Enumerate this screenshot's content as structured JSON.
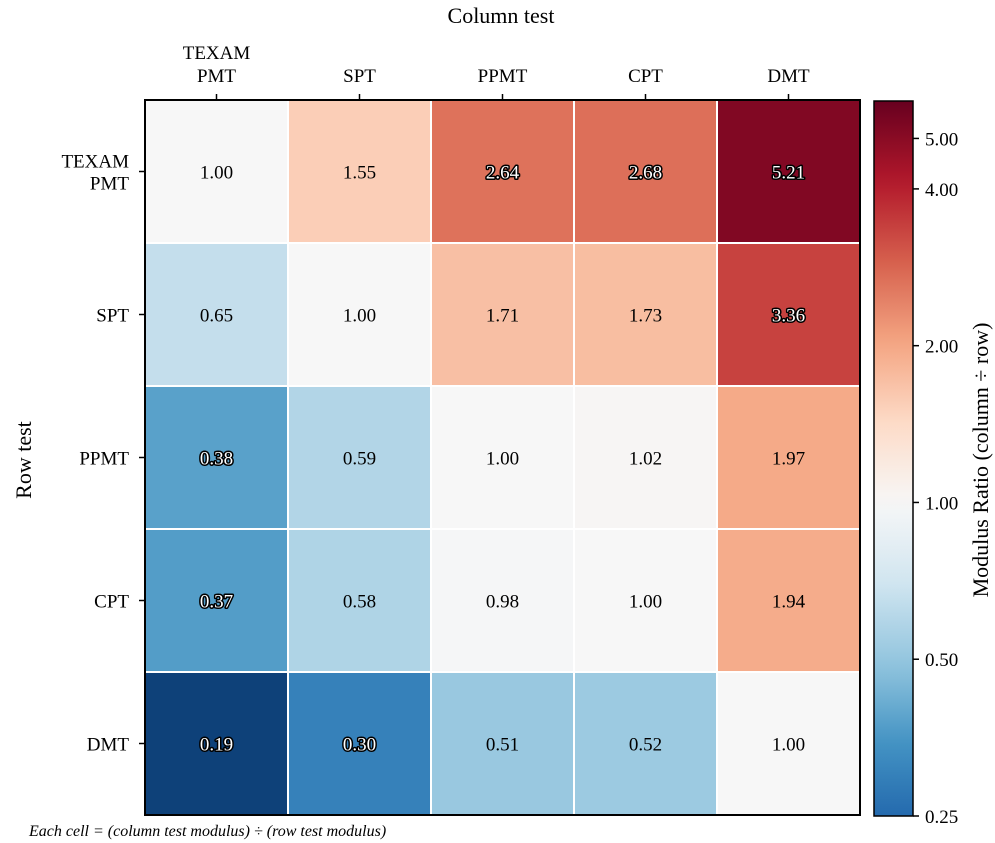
{
  "chart_data": {
    "type": "heatmap",
    "title": "",
    "xlabel": "Column test",
    "ylabel": "Row test",
    "columns": [
      "TEXAM PMT",
      "SPT",
      "PPMT",
      "CPT",
      "DMT"
    ],
    "rows": [
      "TEXAM PMT",
      "SPT",
      "PPMT",
      "CPT",
      "DMT"
    ],
    "values": [
      [
        1.0,
        1.55,
        2.64,
        2.68,
        5.21
      ],
      [
        0.65,
        1.0,
        1.71,
        1.73,
        3.36
      ],
      [
        0.38,
        0.59,
        1.0,
        1.02,
        1.97
      ],
      [
        0.37,
        0.58,
        0.98,
        1.0,
        1.94
      ],
      [
        0.19,
        0.3,
        0.51,
        0.52,
        1.0
      ]
    ],
    "value_labels": [
      [
        "1.00",
        "1.55",
        "2.64",
        "2.68",
        "5.21"
      ],
      [
        "0.65",
        "1.00",
        "1.71",
        "1.73",
        "3.36"
      ],
      [
        "0.38",
        "0.59",
        "1.00",
        "1.02",
        "1.97"
      ],
      [
        "0.37",
        "0.58",
        "0.98",
        "1.00",
        "1.94"
      ],
      [
        "0.19",
        "0.30",
        "0.51",
        "0.52",
        "1.00"
      ]
    ],
    "colorbar": {
      "label": "Modulus Ratio (column ÷ row)",
      "scale": "log",
      "range": [
        0.25,
        5.9
      ],
      "ticks": [
        0.25,
        0.5,
        1.0,
        2.0,
        4.0,
        5.0
      ],
      "tick_labels": [
        "0.25",
        "0.50",
        "1.00",
        "2.00",
        "4.00",
        "5.00"
      ],
      "colormap": "RdBu_r"
    },
    "x_ticks_position": "top",
    "grid": false
  },
  "footnote": "Each cell = (column test modulus) ÷ (row test modulus)"
}
